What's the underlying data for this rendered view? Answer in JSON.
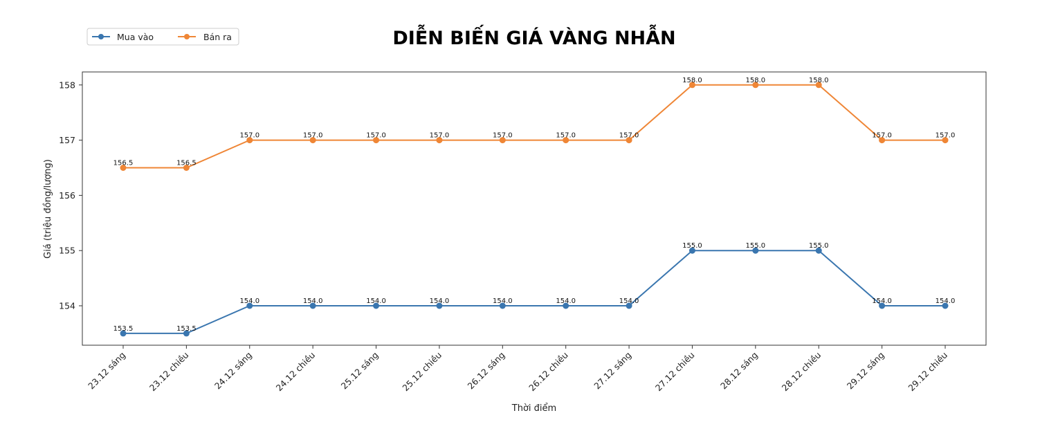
{
  "chart_data": {
    "type": "line",
    "title": "DIỄN BIẾN GIÁ VÀNG NHẪN",
    "xlabel": "Thời điểm",
    "ylabel": "Giá (triệu đồng/lượng)",
    "categories": [
      "23.12 sáng",
      "23.12 chiều",
      "24.12 sáng",
      "24.12 chiều",
      "25.12 sáng",
      "25.12 chiều",
      "26.12 sáng",
      "26.12 chiều",
      "27.12 sáng",
      "27.12 chiều",
      "28.12 sáng",
      "28.12 chiều",
      "29.12 sáng",
      "29.12 chiều"
    ],
    "series": [
      {
        "name": "Mua vào",
        "color": "#3a76af",
        "values": [
          153.5,
          153.5,
          154.0,
          154.0,
          154.0,
          154.0,
          154.0,
          154.0,
          154.0,
          155.0,
          155.0,
          155.0,
          154.0,
          154.0
        ]
      },
      {
        "name": "Bán ra",
        "color": "#ef8636",
        "values": [
          156.5,
          156.5,
          157.0,
          157.0,
          157.0,
          157.0,
          157.0,
          157.0,
          157.0,
          158.0,
          158.0,
          158.0,
          157.0,
          157.0
        ]
      }
    ],
    "yticks": [
      154,
      155,
      156,
      157,
      158
    ],
    "ylim": [
      153.28,
      158.23
    ],
    "grid": false,
    "legend_position": "upper left (outside, above plot)",
    "data_labels": true
  }
}
